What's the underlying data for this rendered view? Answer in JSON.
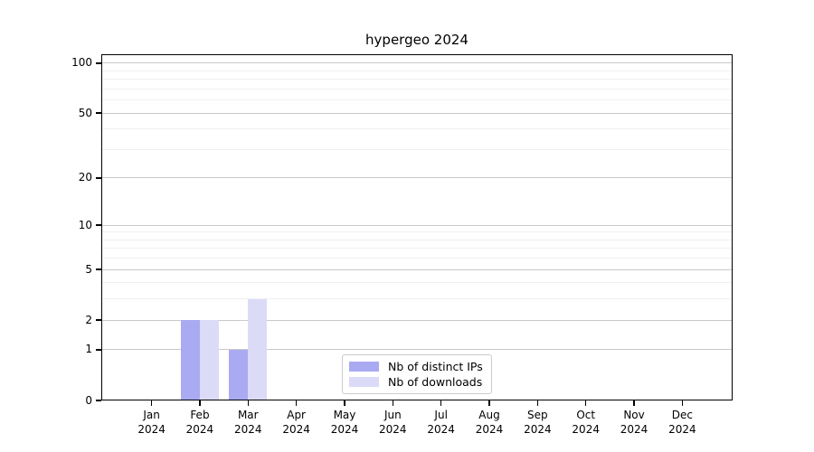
{
  "chart_data": {
    "type": "bar",
    "title": "hypergeo 2024",
    "categories": [
      "Jan",
      "Feb",
      "Mar",
      "Apr",
      "May",
      "Jun",
      "Jul",
      "Aug",
      "Sep",
      "Oct",
      "Nov",
      "Dec"
    ],
    "category_year": "2024",
    "series": [
      {
        "name": "Nb of distinct IPs",
        "color": "#aaaaf2",
        "values": [
          0,
          2,
          1,
          0,
          0,
          0,
          0,
          0,
          0,
          0,
          0,
          0
        ]
      },
      {
        "name": "Nb of downloads",
        "color": "#dbdbf8",
        "values": [
          0,
          2,
          3,
          0,
          0,
          0,
          0,
          0,
          0,
          0,
          0,
          0
        ]
      }
    ],
    "xlabel": "",
    "ylabel": "",
    "yscale": "log1p",
    "ylim": [
      0,
      113
    ],
    "yticks": [
      0,
      1,
      2,
      5,
      10,
      20,
      50,
      100
    ],
    "minor_gridlines": [
      3,
      4,
      6,
      7,
      8,
      9,
      30,
      40,
      60,
      70,
      80,
      90
    ],
    "grid": "horizontal",
    "legend_position": "lower center"
  },
  "colors": {
    "major_grid": "#c9c9c9",
    "minor_grid": "#efefef",
    "spine": "#000000",
    "text": "#000000",
    "background": "#ffffff",
    "legend_border": "#cccccc"
  }
}
